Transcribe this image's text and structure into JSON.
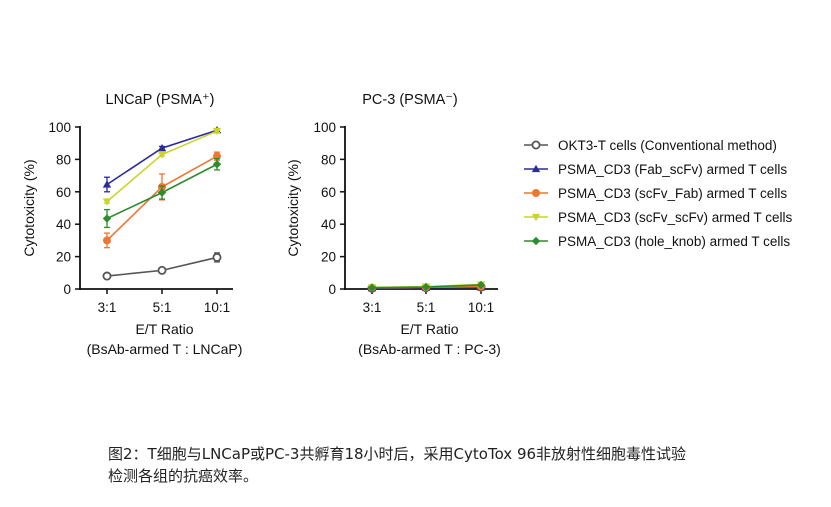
{
  "chart_data": [
    {
      "type": "line",
      "title": "LNCaP (PSMA⁺)",
      "xlabel": "E/T Ratio",
      "xlabel2": "(BsAb-armed T : LNCaP)",
      "ylabel": "Cytotoxicity (%)",
      "categories": [
        "3:1",
        "5:1",
        "10:1"
      ],
      "ylim": [
        0,
        100
      ],
      "yticks": [
        0,
        20,
        40,
        60,
        80,
        100
      ],
      "grid": false,
      "series": [
        {
          "name": "OKT3-T cells (Conventional method)",
          "values": [
            8,
            11.5,
            19.5
          ],
          "errors": [
            0.8,
            0.8,
            2.8
          ]
        },
        {
          "name": "PSMA_CD3 (Fab_scFv) armed T cells",
          "values": [
            64.5,
            87,
            98
          ],
          "errors": [
            4.5,
            1,
            1
          ]
        },
        {
          "name": "PSMA_CD3 (scFv_Fab) armed T cells",
          "values": [
            30,
            63,
            82
          ],
          "errors": [
            4.5,
            8,
            2.5
          ]
        },
        {
          "name": "PSMA_CD3 (scFv_scFv) armed T cells",
          "values": [
            54,
            83,
            97.5
          ],
          "errors": [
            1,
            1,
            1
          ]
        },
        {
          "name": "PSMA_CD3 (hole_knob) armed T cells",
          "values": [
            43.5,
            59.5,
            77
          ],
          "errors": [
            5.5,
            4,
            3.5
          ]
        }
      ]
    },
    {
      "type": "line",
      "title": "PC-3 (PSMA⁻)",
      "xlabel": "E/T Ratio",
      "xlabel2": "(BsAb-armed T : PC-3)",
      "ylabel": "Cytotoxicity (%)",
      "categories": [
        "3:1",
        "5:1",
        "10:1"
      ],
      "ylim": [
        0,
        100
      ],
      "yticks": [
        0,
        20,
        40,
        60,
        80,
        100
      ],
      "grid": false,
      "series": [
        {
          "name": "OKT3-T cells (Conventional method)",
          "values": [
            0.5,
            0.8,
            1.2
          ],
          "errors": [
            0.3,
            0.3,
            0.3
          ]
        },
        {
          "name": "PSMA_CD3 (Fab_scFv) armed T cells",
          "values": [
            0.5,
            0.8,
            1.0
          ],
          "errors": [
            0.3,
            0.3,
            0.3
          ]
        },
        {
          "name": "PSMA_CD3 (scFv_Fab) armed T cells",
          "values": [
            0.8,
            1.0,
            1.5
          ],
          "errors": [
            0.3,
            0.3,
            0.3
          ]
        },
        {
          "name": "PSMA_CD3 (scFv_scFv) armed T cells",
          "values": [
            1.0,
            1.5,
            2.8
          ],
          "errors": [
            0.3,
            0.3,
            0.4
          ]
        },
        {
          "name": "PSMA_CD3 (hole_knob) armed T cells",
          "values": [
            0.8,
            1.2,
            2.5
          ],
          "errors": [
            0.3,
            0.3,
            0.4
          ]
        }
      ]
    }
  ],
  "legend": {
    "placement": "right",
    "items": [
      {
        "label": "OKT3-T cells (Conventional method)",
        "color": "#555555",
        "marker": "open-circle"
      },
      {
        "label": "PSMA_CD3 (Fab_scFv) armed T cells",
        "color": "#2d2a9e",
        "marker": "triangle-up"
      },
      {
        "label": "PSMA_CD3 (scFv_Fab) armed T cells",
        "color": "#ee7733",
        "marker": "circle"
      },
      {
        "label": "PSMA_CD3 (scFv_scFv) armed T cells",
        "color": "#c8d62a",
        "marker": "triangle-down"
      },
      {
        "label": "PSMA_CD3 (hole_knob) armed T cells",
        "color": "#2e8b2e",
        "marker": "diamond"
      }
    ]
  },
  "caption": {
    "line1": "图2：T细胞与LNCaP或PC-3共孵育18小时后，采用CytoTox 96非放射性细胞毒性试验",
    "line2": "检测各组的抗癌效率。"
  }
}
